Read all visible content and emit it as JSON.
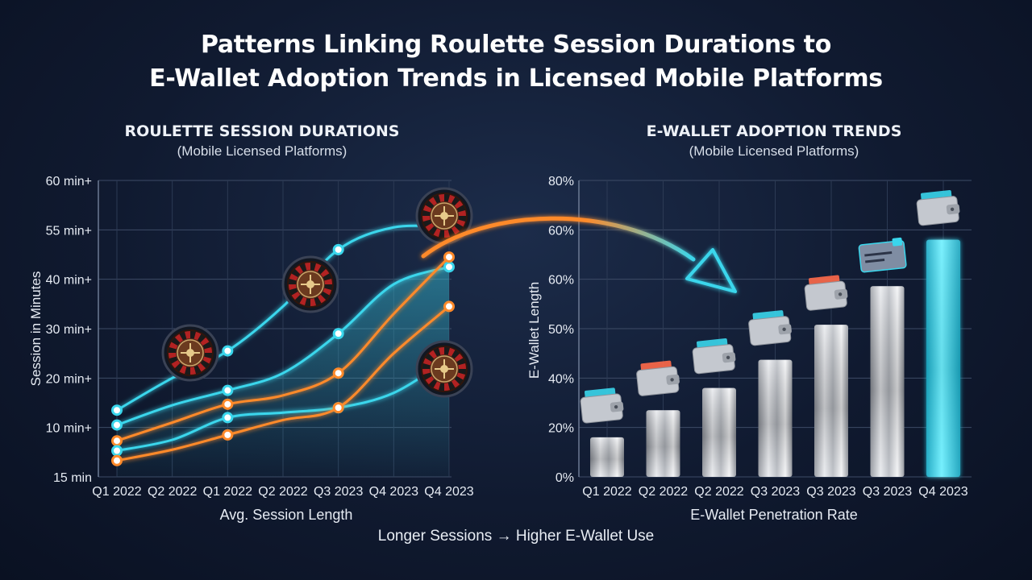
{
  "title_line1": "Patterns Linking Roulette Session Durations to",
  "title_line2": "E-Wallet Adoption Trends in Licensed Mobile Platforms",
  "footer": "Longer Sessions → Higher E-Wallet Use",
  "colors": {
    "cyan": "#3ad6ec",
    "orange": "#ff8a2a",
    "silver": "#c9ccd2",
    "background": "#101a30"
  },
  "icons": [
    "roulette-wheel-icon",
    "wallet-icon",
    "credit-card-icon",
    "trend-arrow-icon"
  ],
  "left_panel": {
    "title": "ROULETTE SESSION DURATIONS",
    "subtitle": "(Mobile Licensed Platforms)"
  },
  "right_panel": {
    "title": "E-WALLET ADOPTION TRENDS",
    "subtitle": "(Mobile Licensed Platforms)"
  },
  "chart_data": [
    {
      "type": "line",
      "title": "ROULETTE SESSION DURATIONS",
      "subtitle": "(Mobile Licensed Platforms)",
      "xlabel": "Avg. Session Length",
      "ylabel": "Session in Minutes",
      "categories": [
        "Q1 2022",
        "Q2 2022",
        "Q1 2022",
        "Q2 2022",
        "Q3 2023",
        "Q4 2023",
        "Q4 2023"
      ],
      "y_tick_labels": [
        "15 min",
        "10 min+",
        "20 min+",
        "30 min+",
        "40 min+",
        "55 min+",
        "60 min+"
      ],
      "y_tick_values": [
        0,
        1,
        2,
        3,
        4,
        5,
        6
      ],
      "ylim": [
        0,
        6
      ],
      "grid": true,
      "marker_x_index": [
        0,
        2,
        4,
        6
      ],
      "series": [
        {
          "color": "#3ad6ec",
          "values": [
            1.35,
            2.0,
            2.55,
            3.45,
            4.6,
            5.05,
            5.05
          ]
        },
        {
          "color": "#3ad6ec",
          "values": [
            1.05,
            1.45,
            1.75,
            2.1,
            2.9,
            3.9,
            4.25
          ]
        },
        {
          "color": "#ff8a2a",
          "values": [
            0.73,
            1.1,
            1.47,
            1.65,
            2.1,
            3.3,
            4.45
          ]
        },
        {
          "color": "#3ad6ec",
          "values": [
            0.53,
            0.75,
            1.2,
            1.3,
            1.4,
            1.7,
            2.4
          ]
        },
        {
          "color": "#ff8a2a",
          "values": [
            0.33,
            0.55,
            0.85,
            1.15,
            1.4,
            2.5,
            3.45
          ]
        }
      ]
    },
    {
      "type": "bar",
      "title": "E-WALLET ADOPTION TRENDS",
      "subtitle": "(Mobile Licensed Platforms)",
      "xlabel": "E-Wallet Penetration Rate",
      "ylabel": "E-Wallet Length",
      "categories": [
        "Q1 2022",
        "Q2 2022",
        "Q2 2022",
        "Q3 2023",
        "Q3 2023",
        "Q3 2023",
        "Q4 2023"
      ],
      "values": [
        0.8,
        1.35,
        1.8,
        2.37,
        3.08,
        3.86,
        4.8
      ],
      "y_tick_labels": [
        "0%",
        "20%",
        "40%",
        "50%",
        "60%",
        "60%",
        "80%"
      ],
      "y_tick_values": [
        0,
        1,
        2,
        3,
        4,
        5,
        6
      ],
      "ylim": [
        0,
        6
      ],
      "grid": true,
      "highlight_index": 6
    }
  ]
}
